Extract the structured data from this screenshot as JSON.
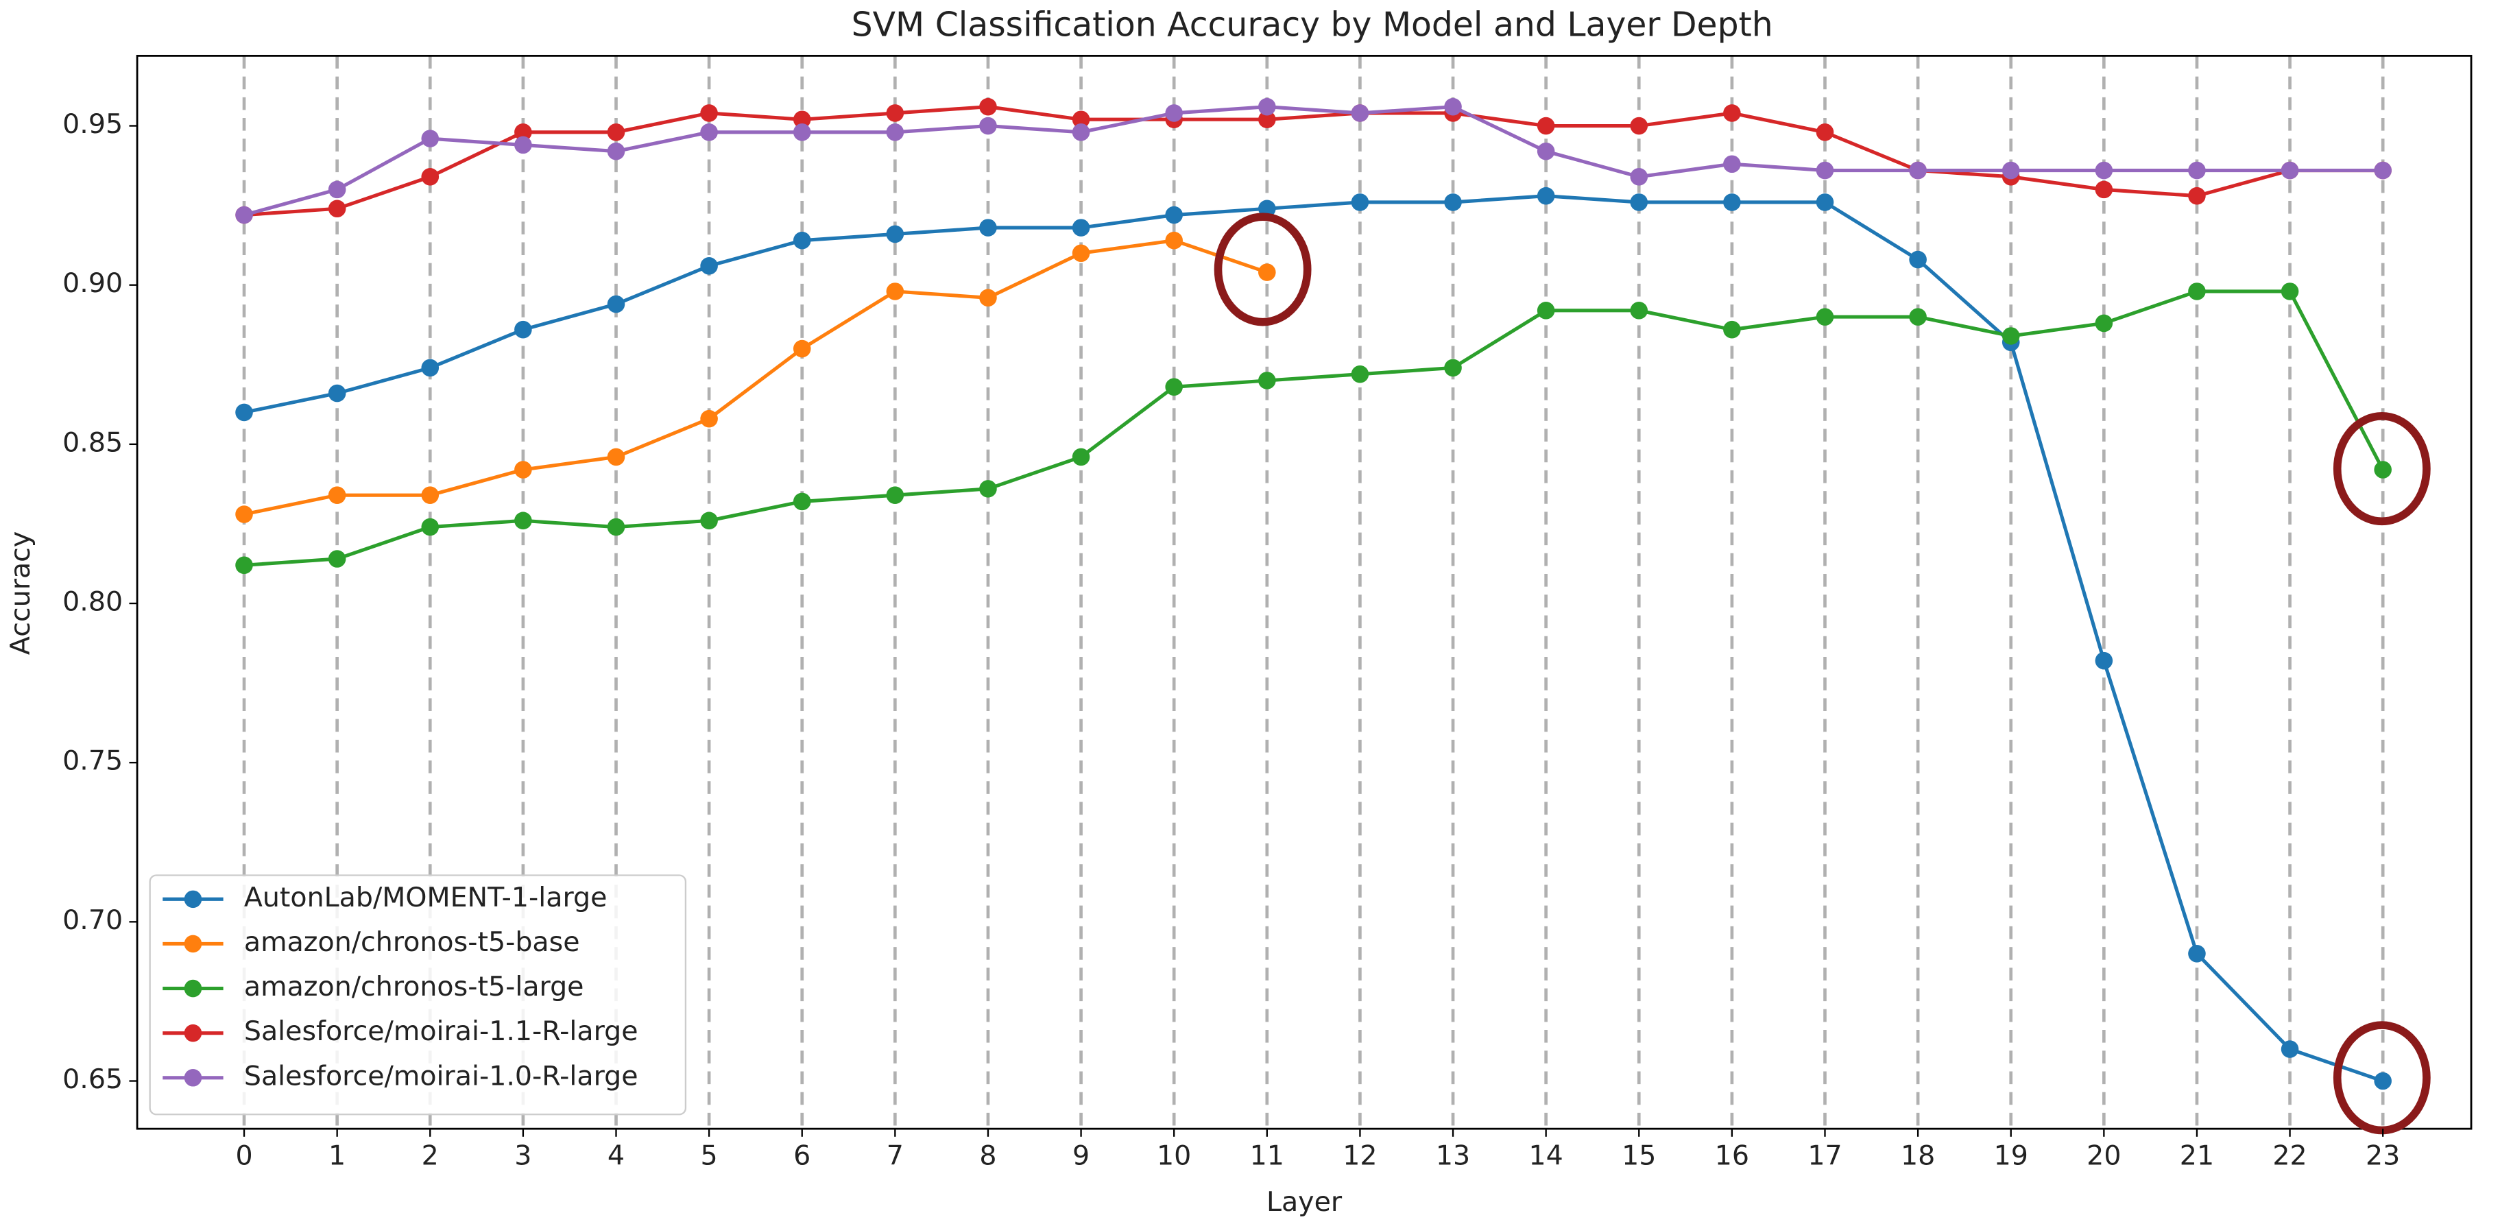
{
  "chart_data": {
    "type": "line",
    "title": "SVM Classification Accuracy by Model and Layer Depth",
    "x_label": "Layer",
    "y_label": "Accuracy",
    "x": [
      0,
      1,
      2,
      3,
      4,
      5,
      6,
      7,
      8,
      9,
      10,
      11,
      12,
      13,
      14,
      15,
      16,
      17,
      18,
      19,
      20,
      21,
      22,
      23
    ],
    "xlim": [
      -1.15,
      23.95
    ],
    "xticks": [
      0,
      1,
      2,
      3,
      4,
      5,
      6,
      7,
      8,
      9,
      10,
      11,
      12,
      13,
      14,
      15,
      16,
      17,
      18,
      19,
      20,
      21,
      22,
      23
    ],
    "ylim": [
      0.635,
      0.972
    ],
    "yticks": [
      0.65,
      {
        "value": 0.7,
        "label": "0.70"
      },
      0.75,
      {
        "value": 0.8,
        "label": "0.80"
      },
      0.85,
      {
        "value": 0.9,
        "label": "0.90"
      },
      0.95
    ],
    "grid": "x",
    "legend": "lower left",
    "series": [
      {
        "name": "AutonLab/MOMENT-1-large",
        "color": "#1f77b4",
        "values": [
          0.86,
          0.866,
          0.874,
          0.886,
          0.894,
          0.906,
          0.914,
          0.916,
          0.918,
          0.918,
          0.922,
          0.924,
          0.926,
          0.926,
          0.928,
          0.926,
          0.926,
          0.926,
          0.908,
          0.882,
          0.782,
          0.69,
          0.66,
          0.65
        ]
      },
      {
        "name": "amazon/chronos-t5-base",
        "color": "#ff7f0e",
        "values": [
          0.828,
          0.834,
          0.834,
          0.842,
          0.846,
          0.858,
          0.88,
          0.898,
          0.896,
          0.91,
          0.914,
          0.904,
          null,
          null,
          null,
          null,
          null,
          null,
          null,
          null,
          null,
          null,
          null,
          null
        ]
      },
      {
        "name": "amazon/chronos-t5-large",
        "color": "#2ca02c",
        "values": [
          0.812,
          0.814,
          0.824,
          0.826,
          0.824,
          0.826,
          0.832,
          0.834,
          0.836,
          0.846,
          0.868,
          0.87,
          0.872,
          0.874,
          0.892,
          0.892,
          0.886,
          0.89,
          0.89,
          0.884,
          0.888,
          0.898,
          0.898,
          0.842
        ]
      },
      {
        "name": "Salesforce/moirai-1.1-R-large",
        "color": "#d62728",
        "values": [
          0.922,
          0.924,
          0.934,
          0.948,
          0.948,
          0.954,
          0.952,
          0.954,
          0.956,
          0.952,
          0.952,
          0.952,
          0.954,
          0.954,
          0.95,
          0.95,
          0.954,
          0.948,
          0.936,
          0.934,
          0.93,
          0.928,
          0.936,
          0.936
        ]
      },
      {
        "name": "Salesforce/moirai-1.0-R-large",
        "color": "#9467bd",
        "values": [
          0.922,
          0.93,
          0.946,
          0.944,
          0.942,
          0.948,
          0.948,
          0.948,
          0.95,
          0.948,
          0.954,
          0.956,
          0.954,
          0.956,
          0.942,
          0.934,
          0.938,
          0.936,
          0.936,
          0.936,
          0.936,
          0.936,
          0.936,
          0.936
        ]
      }
    ]
  }
}
